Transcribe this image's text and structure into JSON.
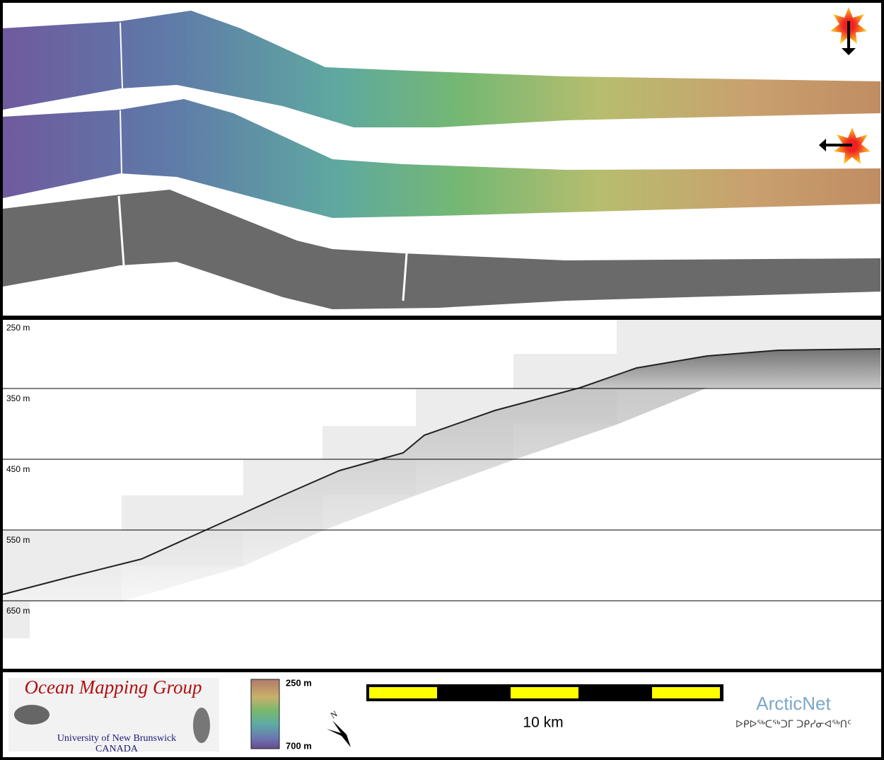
{
  "profile": {
    "depth_labels": [
      "250 m",
      "350 m",
      "450 m",
      "550 m",
      "650 m"
    ]
  },
  "footer": {
    "logo": {
      "title": "Ocean Mapping Group",
      "university": "University of New Brunswick",
      "country": "CANADA"
    },
    "colorbar": {
      "top_label": "250 m",
      "bottom_label": "700 m"
    },
    "north_label": "N",
    "scale_label": "10 km",
    "partner": {
      "name": "ArcticNet",
      "syllabics": "ᐅᑭᐅᖅᑕᖅᑐᒥ ᑐᑭᓯᓂᐊᖅᑎᑦ"
    }
  }
}
